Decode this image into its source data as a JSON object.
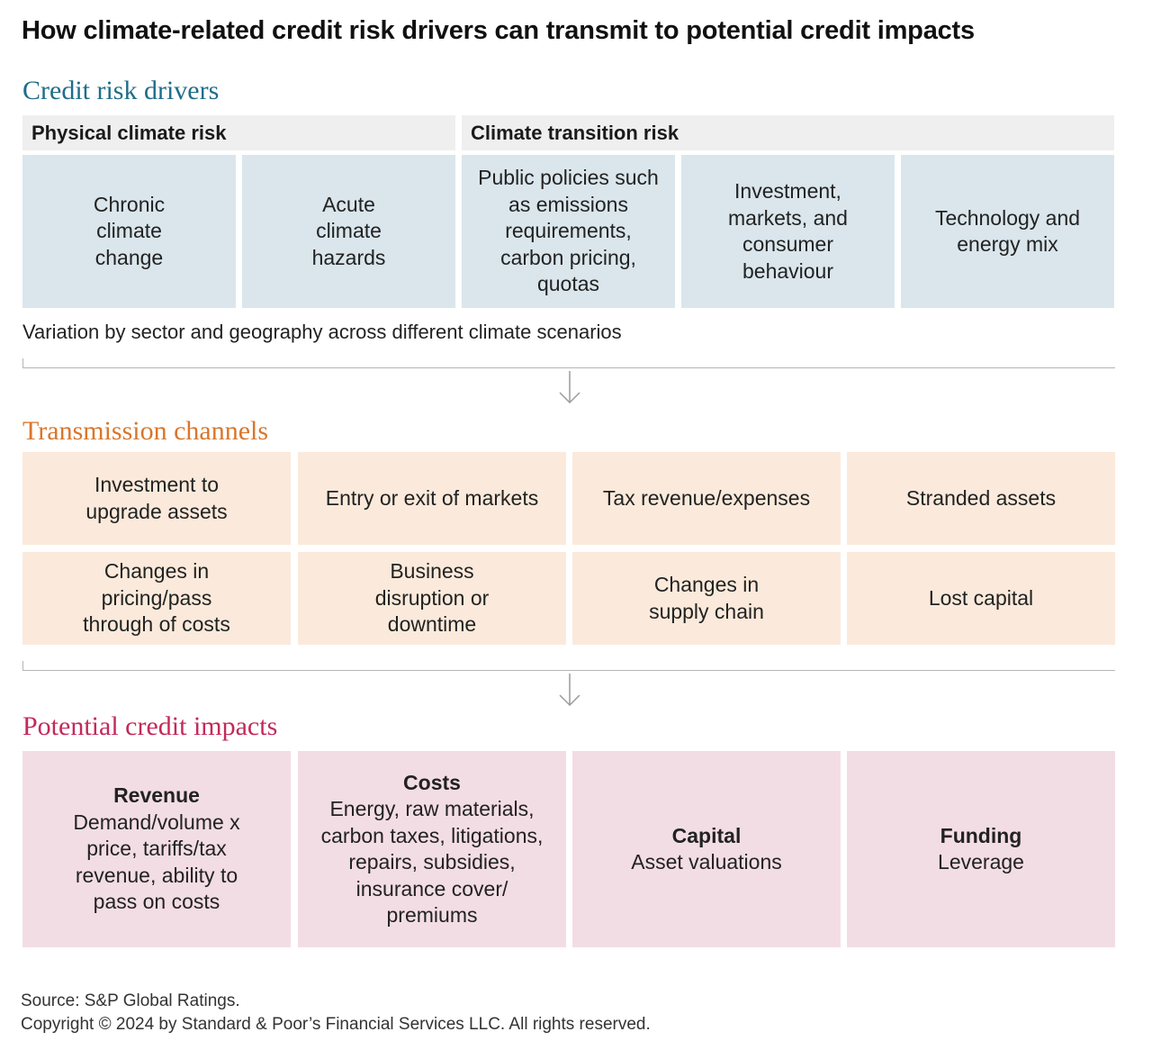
{
  "title": "How climate-related credit risk drivers can transmit to potential credit impacts",
  "sections": {
    "drivers_heading": "Credit risk drivers",
    "channels_heading": "Transmission channels",
    "impacts_heading": "Potential credit impacts"
  },
  "colors": {
    "drivers_accent": "#1f6d8a",
    "channels_accent": "#d9762b",
    "impacts_accent": "#c4295b",
    "driver_box": "#dae6ec",
    "channel_box": "#fbeadb",
    "impact_box": "#f3dde4"
  },
  "drivers": {
    "physical_label": "Physical climate risk",
    "transition_label": "Climate transition risk",
    "items": [
      "Chronic climate change",
      "Acute climate hazards",
      "Public policies such as emissions requirements, carbon pricing, quotas",
      "Investment, markets, and consumer behaviour",
      "Technology and energy mix"
    ],
    "variation_note": "Variation by sector and geography across different climate scenarios"
  },
  "channels": [
    "Investment to upgrade assets",
    "Entry or exit of markets",
    "Tax revenue/expenses",
    "Stranded assets",
    "Changes in pricing/pass through of costs",
    "Business disruption or downtime",
    "Changes in supply chain",
    "Lost capital"
  ],
  "impacts": [
    {
      "title": "Revenue",
      "detail": "Demand/volume x price, tariffs/tax revenue, ability to pass on costs"
    },
    {
      "title": "Costs",
      "detail": "Energy, raw materials, carbon taxes, litigations, repairs, subsidies, insurance cover/ premiums"
    },
    {
      "title": "Capital",
      "detail": "Asset valuations"
    },
    {
      "title": "Funding",
      "detail": "Leverage"
    }
  ],
  "footer": {
    "source": "Source: S&P Global Ratings.",
    "copyright": "Copyright © 2024 by Standard & Poor’s Financial Services LLC. All rights reserved."
  }
}
